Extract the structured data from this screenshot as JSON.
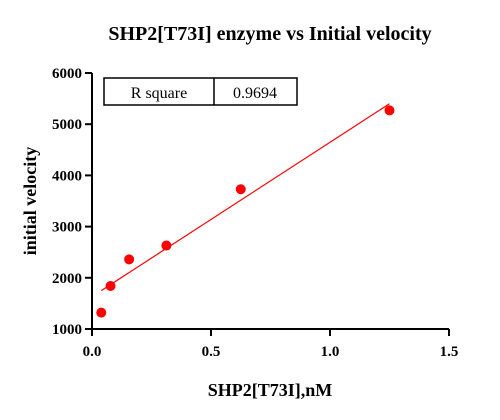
{
  "chart_data": {
    "type": "scatter",
    "title": "SHP2[T73I] enzyme vs Initial velocity",
    "xlabel": "SHP2[T73I],nM",
    "ylabel": "initial velocity",
    "xlim": [
      0,
      1.5
    ],
    "ylim": [
      1000,
      6000
    ],
    "x_ticks": [
      "0.0",
      "0.5",
      "1.0",
      "1.5"
    ],
    "y_ticks": [
      "1000",
      "2000",
      "3000",
      "4000",
      "5000",
      "6000"
    ],
    "points": [
      {
        "x": 0.039,
        "y": 1320
      },
      {
        "x": 0.078,
        "y": 1840
      },
      {
        "x": 0.156,
        "y": 2360
      },
      {
        "x": 0.3125,
        "y": 2630
      },
      {
        "x": 0.625,
        "y": 3730
      },
      {
        "x": 1.25,
        "y": 5270
      }
    ],
    "fit_line": {
      "x": [
        0.039,
        1.25
      ],
      "y": [
        1750,
        5400
      ]
    },
    "stats_table": {
      "label": "R square",
      "value": "0.9694"
    },
    "colors": {
      "points": "#ff0000",
      "fit_line": "#ff0000",
      "axes": "#000000"
    },
    "grid": false,
    "legend": "none"
  }
}
